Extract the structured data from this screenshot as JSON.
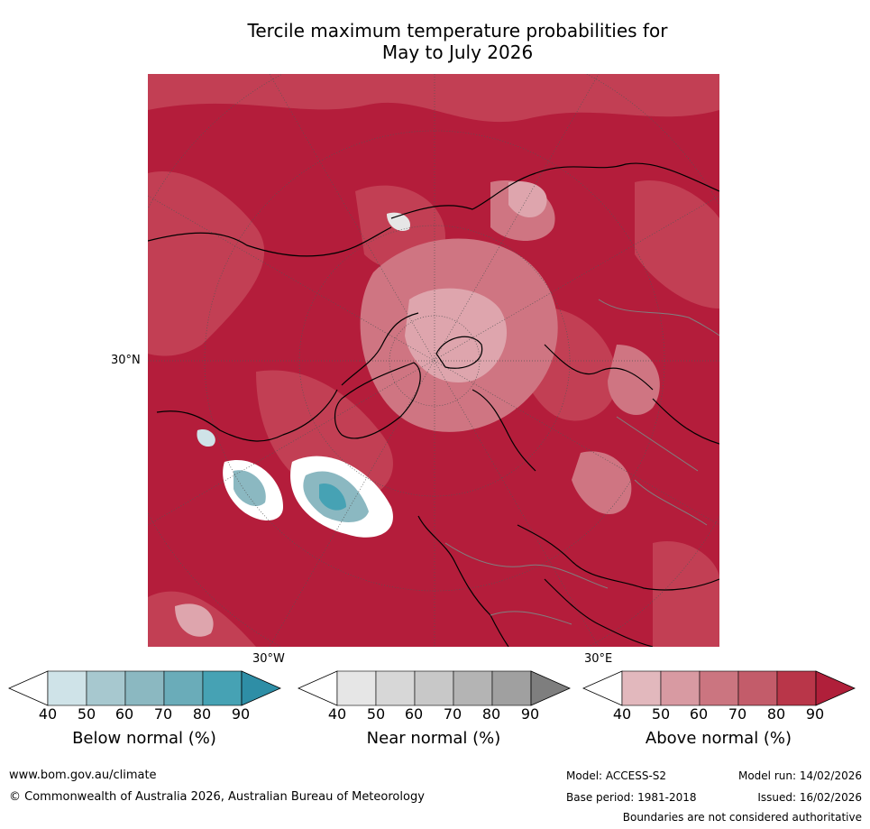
{
  "title_line1": "Tercile maximum temperature probabilities for",
  "title_line2": "May to July 2026",
  "axis_labels": {
    "lat": "30°N",
    "lon_w": "30°W",
    "lon_e": "30°E"
  },
  "colorbars": [
    {
      "label": "Below normal (%)",
      "ticks": [
        "40",
        "50",
        "60",
        "70",
        "80",
        "90"
      ],
      "colors": [
        "#ffffff",
        "#cfe3e8",
        "#a7c8cf",
        "#8bb8c1",
        "#6aacb9",
        "#46a2b4",
        "#2e8ea6"
      ]
    },
    {
      "label": "Near normal (%)",
      "ticks": [
        "40",
        "50",
        "60",
        "70",
        "80",
        "90"
      ],
      "colors": [
        "#ffffff",
        "#e6e6e6",
        "#d7d7d7",
        "#c8c8c8",
        "#b4b4b4",
        "#a0a0a0",
        "#7e7e7e"
      ]
    },
    {
      "label": "Above normal (%)",
      "ticks": [
        "40",
        "50",
        "60",
        "70",
        "80",
        "90"
      ],
      "colors": [
        "#ffffff",
        "#e2b8bd",
        "#d89aa2",
        "#cb7580",
        "#c35c6a",
        "#b93649",
        "#b01f3a"
      ]
    }
  ],
  "footer": {
    "website": "www.bom.gov.au/climate",
    "copyright": "© Commonwealth of Australia 2026, Australian Bureau of Meteorology",
    "model": "Model: ACCESS-S2",
    "model_run": "Model run: 14/02/2026",
    "base_period": "Base period: 1981-2018",
    "issued": "Issued: 16/02/2026",
    "disclaimer": "Boundaries are not considered authoritative"
  }
}
